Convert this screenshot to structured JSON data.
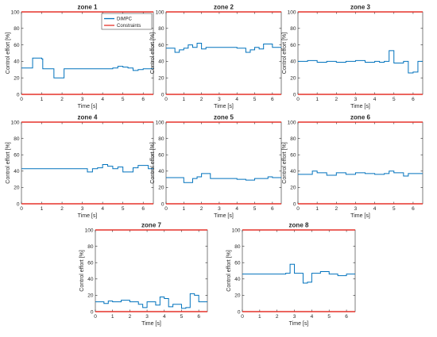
{
  "figure": {
    "legend": {
      "placement": "top-right",
      "panel": "zone 1",
      "entries": [
        {
          "label": "DiMPC",
          "color": "#0072bd"
        },
        {
          "label": "Constraints",
          "color": "#e5322a"
        }
      ]
    }
  },
  "chart_data": [
    {
      "type": "line",
      "title": "zone 1",
      "xlabel": "Time [s]",
      "ylabel": "Control effort [%]",
      "xlim": [
        0,
        6.5
      ],
      "ylim": [
        0,
        100
      ],
      "xticks": [
        0,
        1,
        2,
        3,
        4,
        5,
        6
      ],
      "yticks": [
        0,
        20,
        40,
        60,
        80,
        100
      ],
      "grid": false,
      "series": [
        {
          "name": "DiMPC",
          "color": "#0072bd",
          "step": true,
          "x": [
            0,
            0.5,
            0.55,
            1.0,
            1.05,
            1.5,
            1.6,
            2.0,
            2.1,
            2.5,
            3.0,
            3.5,
            4.0,
            4.5,
            4.75,
            5.0,
            5.25,
            5.5,
            5.75,
            6.0,
            6.5
          ],
          "y": [
            32,
            32,
            44,
            43,
            31,
            31,
            20,
            20,
            31,
            31,
            31,
            31,
            31,
            32,
            34,
            33,
            32,
            29,
            30,
            31,
            31
          ]
        },
        {
          "name": "Constraints",
          "color": "#e5322a",
          "x": [
            0,
            6.5
          ],
          "y": [
            100,
            100
          ]
        },
        {
          "name": "Constraints",
          "color": "#e5322a",
          "x": [
            0,
            6.5
          ],
          "y": [
            0,
            0
          ]
        }
      ]
    },
    {
      "type": "line",
      "title": "zone 2",
      "xlabel": "Time [s]",
      "ylabel": "Control effort [%]",
      "xlim": [
        0,
        6.5
      ],
      "ylim": [
        0,
        100
      ],
      "xticks": [
        0,
        1,
        2,
        3,
        4,
        5,
        6
      ],
      "yticks": [
        0,
        20,
        40,
        60,
        80,
        100
      ],
      "grid": false,
      "series": [
        {
          "name": "DiMPC",
          "color": "#0072bd",
          "step": true,
          "x": [
            0,
            0.25,
            0.5,
            0.75,
            1.0,
            1.25,
            1.5,
            1.75,
            2.0,
            2.25,
            3.0,
            4.0,
            4.5,
            4.75,
            5.0,
            5.25,
            5.5,
            6.0,
            6.5
          ],
          "y": [
            56,
            56,
            51,
            54,
            56,
            60,
            57,
            62,
            55,
            57,
            57,
            56,
            51,
            54,
            57,
            55,
            61,
            57,
            57
          ]
        },
        {
          "name": "Constraints",
          "color": "#e5322a",
          "x": [
            0,
            6.5
          ],
          "y": [
            100,
            100
          ]
        },
        {
          "name": "Constraints",
          "color": "#e5322a",
          "x": [
            0,
            6.5
          ],
          "y": [
            0,
            0
          ]
        }
      ]
    },
    {
      "type": "line",
      "title": "zone 3",
      "xlabel": "Time [s]",
      "ylabel": "Control effort [%]",
      "xlim": [
        0,
        6.5
      ],
      "ylim": [
        0,
        100
      ],
      "xticks": [
        0,
        1,
        2,
        3,
        4,
        5,
        6
      ],
      "yticks": [
        0,
        20,
        40,
        60,
        80,
        100
      ],
      "grid": false,
      "series": [
        {
          "name": "DiMPC",
          "color": "#0072bd",
          "step": true,
          "x": [
            0,
            0.5,
            1.0,
            1.5,
            2.0,
            2.5,
            3.0,
            3.5,
            4.0,
            4.25,
            4.5,
            4.75,
            5.0,
            5.5,
            5.75,
            6.0,
            6.25,
            6.5
          ],
          "y": [
            40,
            41,
            39,
            40,
            39,
            40,
            41,
            39,
            40,
            39,
            40,
            53,
            38,
            40,
            26,
            27,
            40,
            40
          ]
        },
        {
          "name": "Constraints",
          "color": "#e5322a",
          "x": [
            0,
            6.5
          ],
          "y": [
            100,
            100
          ]
        },
        {
          "name": "Constraints",
          "color": "#e5322a",
          "x": [
            0,
            6.5
          ],
          "y": [
            0,
            0
          ]
        }
      ]
    },
    {
      "type": "line",
      "title": "zone 4",
      "xlabel": "Time [s]",
      "ylabel": "Control effort [%]",
      "xlim": [
        0,
        6.5
      ],
      "ylim": [
        0,
        100
      ],
      "xticks": [
        0,
        1,
        2,
        3,
        4,
        5,
        6
      ],
      "yticks": [
        0,
        20,
        40,
        60,
        80,
        100
      ],
      "grid": false,
      "series": [
        {
          "name": "DiMPC",
          "color": "#0072bd",
          "step": true,
          "x": [
            0,
            1.0,
            2.0,
            2.5,
            3.0,
            3.25,
            3.5,
            3.75,
            4.0,
            4.25,
            4.5,
            4.75,
            5.0,
            5.5,
            5.75,
            6.0,
            6.25,
            6.5
          ],
          "y": [
            43,
            43,
            43,
            43,
            43,
            39,
            43,
            44,
            48,
            46,
            43,
            45,
            39,
            44,
            47,
            47,
            43,
            43
          ]
        },
        {
          "name": "Constraints",
          "color": "#e5322a",
          "x": [
            0,
            6.5
          ],
          "y": [
            100,
            100
          ]
        },
        {
          "name": "Constraints",
          "color": "#e5322a",
          "x": [
            0,
            6.5
          ],
          "y": [
            0,
            0
          ]
        }
      ]
    },
    {
      "type": "line",
      "title": "zone 5",
      "xlabel": "Time [s]",
      "ylabel": "Control effort [%]",
      "xlim": [
        0,
        6.5
      ],
      "ylim": [
        0,
        100
      ],
      "xticks": [
        0,
        1,
        2,
        3,
        4,
        5,
        6
      ],
      "yticks": [
        0,
        20,
        40,
        60,
        80,
        100
      ],
      "grid": false,
      "series": [
        {
          "name": "DiMPC",
          "color": "#0072bd",
          "step": true,
          "x": [
            0,
            0.5,
            1.0,
            1.5,
            1.75,
            2.0,
            2.5,
            3.0,
            3.5,
            4.0,
            4.5,
            5.0,
            5.5,
            5.75,
            6.0,
            6.5
          ],
          "y": [
            32,
            32,
            26,
            31,
            33,
            37,
            31,
            31,
            31,
            30,
            29,
            31,
            31,
            33,
            32,
            32
          ]
        },
        {
          "name": "Constraints",
          "color": "#e5322a",
          "x": [
            0,
            6.5
          ],
          "y": [
            100,
            100
          ]
        },
        {
          "name": "Constraints",
          "color": "#e5322a",
          "x": [
            0,
            6.5
          ],
          "y": [
            0,
            0
          ]
        }
      ]
    },
    {
      "type": "line",
      "title": "zone 6",
      "xlabel": "Time [s]",
      "ylabel": "Control effort [%]",
      "xlim": [
        0,
        6.5
      ],
      "ylim": [
        0,
        100
      ],
      "xticks": [
        0,
        1,
        2,
        3,
        4,
        5,
        6
      ],
      "yticks": [
        0,
        20,
        40,
        60,
        80,
        100
      ],
      "grid": false,
      "series": [
        {
          "name": "DiMPC",
          "color": "#0072bd",
          "step": true,
          "x": [
            0,
            0.5,
            0.75,
            1.0,
            1.5,
            2.0,
            2.5,
            3.0,
            3.5,
            4.0,
            4.5,
            4.75,
            5.0,
            5.5,
            5.75,
            6.0,
            6.5
          ],
          "y": [
            36,
            36,
            40,
            38,
            35,
            38,
            36,
            38,
            37,
            36,
            37,
            40,
            38,
            34,
            37,
            37,
            37
          ]
        },
        {
          "name": "Constraints",
          "color": "#e5322a",
          "x": [
            0,
            6.5
          ],
          "y": [
            100,
            100
          ]
        },
        {
          "name": "Constraints",
          "color": "#e5322a",
          "x": [
            0,
            6.5
          ],
          "y": [
            0,
            0
          ]
        }
      ]
    },
    {
      "type": "line",
      "title": "zone 7",
      "xlabel": "Time [s]",
      "ylabel": "Control effort [%]",
      "xlim": [
        0,
        6.5
      ],
      "ylim": [
        0,
        100
      ],
      "xticks": [
        0,
        1,
        2,
        3,
        4,
        5,
        6
      ],
      "yticks": [
        0,
        20,
        40,
        60,
        80,
        100
      ],
      "grid": false,
      "series": [
        {
          "name": "DiMPC",
          "color": "#0072bd",
          "step": true,
          "x": [
            0,
            0.5,
            0.75,
            1.0,
            1.5,
            2.0,
            2.5,
            2.75,
            3.0,
            3.5,
            3.75,
            4.0,
            4.25,
            4.5,
            5.0,
            5.25,
            5.5,
            5.75,
            6.0,
            6.5
          ],
          "y": [
            12,
            10,
            13,
            12,
            14,
            12,
            9,
            5,
            12,
            8,
            18,
            16,
            6,
            9,
            4,
            5,
            22,
            20,
            12,
            12
          ]
        },
        {
          "name": "Constraints",
          "color": "#e5322a",
          "x": [
            0,
            6.5
          ],
          "y": [
            100,
            100
          ]
        },
        {
          "name": "Constraints",
          "color": "#e5322a",
          "x": [
            0,
            6.5
          ],
          "y": [
            0,
            0
          ]
        }
      ]
    },
    {
      "type": "line",
      "title": "zone 8",
      "xlabel": "Time [s]",
      "ylabel": "Control effort [%]",
      "xlim": [
        0,
        6.5
      ],
      "ylim": [
        0,
        100
      ],
      "xticks": [
        0,
        1,
        2,
        3,
        4,
        5,
        6
      ],
      "yticks": [
        0,
        20,
        40,
        60,
        80,
        100
      ],
      "grid": false,
      "series": [
        {
          "name": "DiMPC",
          "color": "#0072bd",
          "step": true,
          "x": [
            0,
            1.0,
            2.0,
            2.5,
            2.75,
            3.0,
            3.5,
            3.75,
            4.0,
            4.5,
            5.0,
            5.5,
            5.75,
            6.0,
            6.5
          ],
          "y": [
            46,
            46,
            46,
            47,
            58,
            47,
            35,
            36,
            47,
            49,
            46,
            44,
            44,
            46,
            46
          ]
        },
        {
          "name": "Constraints",
          "color": "#e5322a",
          "x": [
            0,
            6.5
          ],
          "y": [
            100,
            100
          ]
        },
        {
          "name": "Constraints",
          "color": "#e5322a",
          "x": [
            0,
            6.5
          ],
          "y": [
            0,
            0
          ]
        }
      ]
    }
  ]
}
